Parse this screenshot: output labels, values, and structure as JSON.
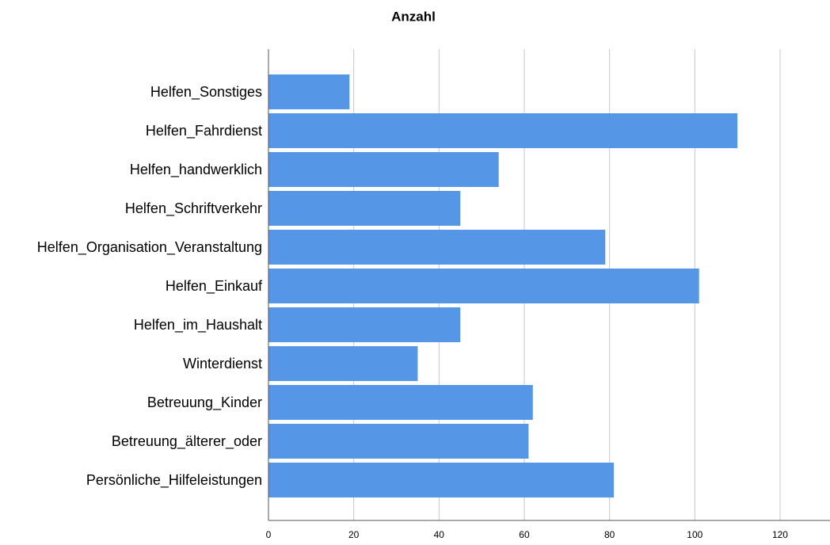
{
  "chart_data": {
    "type": "barh",
    "title": "Anzahl",
    "categories": [
      "Helfen_Sonstiges",
      "Helfen_Fahrdienst",
      "Helfen_handwerklich",
      "Helfen_Schriftverkehr",
      "Helfen_Organisation_Veranstaltung",
      "Helfen_Einkauf",
      "Helfen_im_Haushalt",
      "Winterdienst",
      "Betreuung_Kinder",
      "Betreuung_älterer_oder",
      "Persönliche_Hilfeleistungen"
    ],
    "values": [
      19,
      110,
      54,
      45,
      79,
      101,
      45,
      35,
      62,
      61,
      81
    ],
    "color": "#5596e6",
    "xlim": [
      0,
      130
    ],
    "xticks": [
      0,
      20,
      40,
      60,
      80,
      100,
      120
    ],
    "grid": true
  }
}
